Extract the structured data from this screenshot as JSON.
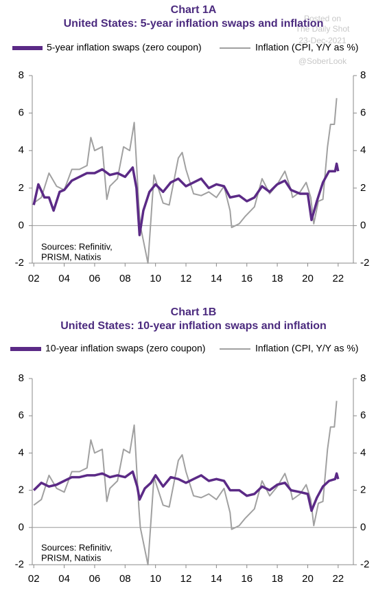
{
  "watermark": [
    "Posted on",
    "The Daily Shot",
    "23-Dec-2021",
    "@SoberLook"
  ],
  "chart_data": [
    {
      "type": "line",
      "title": "Chart 1A",
      "subtitle": "United States: 5-year inflation swaps and inflation",
      "notes": [
        "Sources: Refinitiv,",
        "PRISM, Natixis"
      ],
      "xlim": [
        1.9,
        23
      ],
      "xticks": [
        {
          "value": 2,
          "label": "02"
        },
        {
          "value": 4,
          "label": "04"
        },
        {
          "value": 6,
          "label": "06"
        },
        {
          "value": 8,
          "label": "08"
        },
        10,
        12,
        14,
        16,
        18,
        20,
        22
      ],
      "ylim": [
        -2,
        8
      ],
      "yticks": [
        -2,
        0,
        2,
        4,
        6,
        8
      ],
      "y2lim": [
        -2,
        8
      ],
      "y2ticks": [
        -2,
        0,
        2,
        4,
        6,
        8
      ],
      "series": [
        {
          "name": "5-year inflation swaps (zero coupon)",
          "color": "#5b2a86",
          "x": [
            2.0,
            2.3,
            2.7,
            3.0,
            3.3,
            3.7,
            4.0,
            4.5,
            5.0,
            5.5,
            6.0,
            6.5,
            7.0,
            7.5,
            8.0,
            8.5,
            8.75,
            8.95,
            9.2,
            9.6,
            10.0,
            10.5,
            11.0,
            11.5,
            12.0,
            12.5,
            13.0,
            13.5,
            14.0,
            14.5,
            14.9,
            15.5,
            16.0,
            16.5,
            17.0,
            17.5,
            18.0,
            18.5,
            18.9,
            19.5,
            20.0,
            20.25,
            20.6,
            21.0,
            21.4,
            21.8,
            21.9,
            22.0
          ],
          "values": [
            1.1,
            2.2,
            1.5,
            1.5,
            0.8,
            1.8,
            1.9,
            2.4,
            2.6,
            2.8,
            2.8,
            3.0,
            2.7,
            2.8,
            2.6,
            3.1,
            2.0,
            -0.5,
            0.8,
            1.8,
            2.2,
            1.8,
            2.3,
            2.5,
            2.1,
            2.3,
            2.5,
            2.0,
            2.2,
            2.1,
            1.5,
            1.6,
            1.3,
            1.5,
            2.1,
            1.8,
            2.2,
            2.4,
            1.9,
            1.7,
            1.7,
            0.3,
            1.3,
            2.3,
            2.9,
            2.9,
            3.3,
            2.9
          ]
        },
        {
          "name": "Inflation (CPI, Y/Y as %)",
          "color": "#a0a0a0",
          "axis": "y2",
          "x": [
            2.0,
            2.5,
            3.0,
            3.5,
            4.0,
            4.5,
            5.0,
            5.5,
            5.75,
            6.0,
            6.5,
            6.8,
            7.0,
            7.5,
            7.9,
            8.3,
            8.6,
            8.9,
            9.0,
            9.5,
            9.9,
            10.5,
            10.9,
            11.5,
            11.75,
            12.0,
            12.5,
            13.0,
            13.5,
            14.0,
            14.5,
            14.9,
            15.0,
            15.5,
            15.9,
            16.5,
            17.0,
            17.5,
            18.0,
            18.5,
            18.9,
            19.0,
            19.5,
            19.9,
            20.2,
            20.4,
            20.7,
            21.0,
            21.3,
            21.5,
            21.75,
            21.9
          ],
          "values": [
            1.2,
            1.5,
            2.8,
            2.1,
            1.9,
            3.0,
            3.0,
            3.2,
            4.7,
            4.0,
            4.2,
            1.4,
            2.1,
            2.5,
            4.2,
            4.0,
            5.5,
            1.1,
            0.0,
            -2.0,
            2.7,
            1.2,
            1.1,
            3.6,
            3.9,
            3.0,
            1.7,
            1.6,
            1.8,
            1.5,
            2.1,
            0.8,
            -0.1,
            0.1,
            0.5,
            1.0,
            2.5,
            1.7,
            2.2,
            2.9,
            1.9,
            1.5,
            1.8,
            2.3,
            1.5,
            0.1,
            1.3,
            1.4,
            4.2,
            5.4,
            5.4,
            6.8
          ]
        }
      ]
    },
    {
      "type": "line",
      "title": "Chart 1B",
      "subtitle": "United States: 10-year inflation swaps and inflation",
      "notes": [
        "Sources: Refinitiv,",
        "PRISM, Natixis"
      ],
      "xlim": [
        1.9,
        23
      ],
      "xticks": [
        {
          "value": 2,
          "label": "02"
        },
        {
          "value": 4,
          "label": "04"
        },
        {
          "value": 6,
          "label": "06"
        },
        {
          "value": 8,
          "label": "08"
        },
        10,
        12,
        14,
        16,
        18,
        20,
        22
      ],
      "ylim": [
        -2,
        8
      ],
      "yticks": [
        -2,
        0,
        2,
        4,
        6,
        8
      ],
      "y2lim": [
        -2,
        8
      ],
      "y2ticks": [
        -2,
        0,
        2,
        4,
        6,
        8
      ],
      "series": [
        {
          "name": "10-year inflation swaps (zero coupon)",
          "color": "#5b2a86",
          "x": [
            2.0,
            2.5,
            3.0,
            3.5,
            4.0,
            4.5,
            5.0,
            5.5,
            6.0,
            6.5,
            7.0,
            7.5,
            8.0,
            8.5,
            8.8,
            8.95,
            9.3,
            9.7,
            10.0,
            10.5,
            11.0,
            11.5,
            12.0,
            12.5,
            13.0,
            13.5,
            14.0,
            14.5,
            14.9,
            15.5,
            16.0,
            16.5,
            17.0,
            17.5,
            18.0,
            18.5,
            18.9,
            19.5,
            20.0,
            20.25,
            20.6,
            21.0,
            21.4,
            21.8,
            21.9,
            22.0
          ],
          "values": [
            2.0,
            2.4,
            2.2,
            2.3,
            2.5,
            2.7,
            2.7,
            2.8,
            2.8,
            2.9,
            2.7,
            2.8,
            2.7,
            3.0,
            2.2,
            1.5,
            2.1,
            2.4,
            2.8,
            2.2,
            2.7,
            2.6,
            2.4,
            2.6,
            2.8,
            2.5,
            2.6,
            2.5,
            2.0,
            2.0,
            1.7,
            1.8,
            2.2,
            2.0,
            2.3,
            2.4,
            2.0,
            1.9,
            1.8,
            0.9,
            1.6,
            2.2,
            2.5,
            2.6,
            2.9,
            2.6
          ]
        },
        {
          "name": "Inflation (CPI, Y/Y as %)",
          "color": "#a0a0a0",
          "axis": "y2",
          "x": [
            2.0,
            2.5,
            3.0,
            3.5,
            4.0,
            4.5,
            5.0,
            5.5,
            5.75,
            6.0,
            6.5,
            6.8,
            7.0,
            7.5,
            7.9,
            8.3,
            8.6,
            8.9,
            9.0,
            9.5,
            9.9,
            10.5,
            10.9,
            11.5,
            11.75,
            12.0,
            12.5,
            13.0,
            13.5,
            14.0,
            14.5,
            14.9,
            15.0,
            15.5,
            15.9,
            16.5,
            17.0,
            17.5,
            18.0,
            18.5,
            18.9,
            19.0,
            19.5,
            19.9,
            20.2,
            20.4,
            20.7,
            21.0,
            21.3,
            21.5,
            21.75,
            21.9
          ],
          "values": [
            1.2,
            1.5,
            2.8,
            2.1,
            1.9,
            3.0,
            3.0,
            3.2,
            4.7,
            4.0,
            4.2,
            1.4,
            2.1,
            2.5,
            4.2,
            4.0,
            5.5,
            1.1,
            0.0,
            -2.0,
            2.7,
            1.2,
            1.1,
            3.6,
            3.9,
            3.0,
            1.7,
            1.6,
            1.8,
            1.5,
            2.1,
            0.8,
            -0.1,
            0.1,
            0.5,
            1.0,
            2.5,
            1.7,
            2.2,
            2.9,
            1.9,
            1.5,
            1.8,
            2.3,
            1.5,
            0.1,
            1.3,
            1.4,
            4.2,
            5.4,
            5.4,
            6.8
          ]
        }
      ]
    }
  ]
}
